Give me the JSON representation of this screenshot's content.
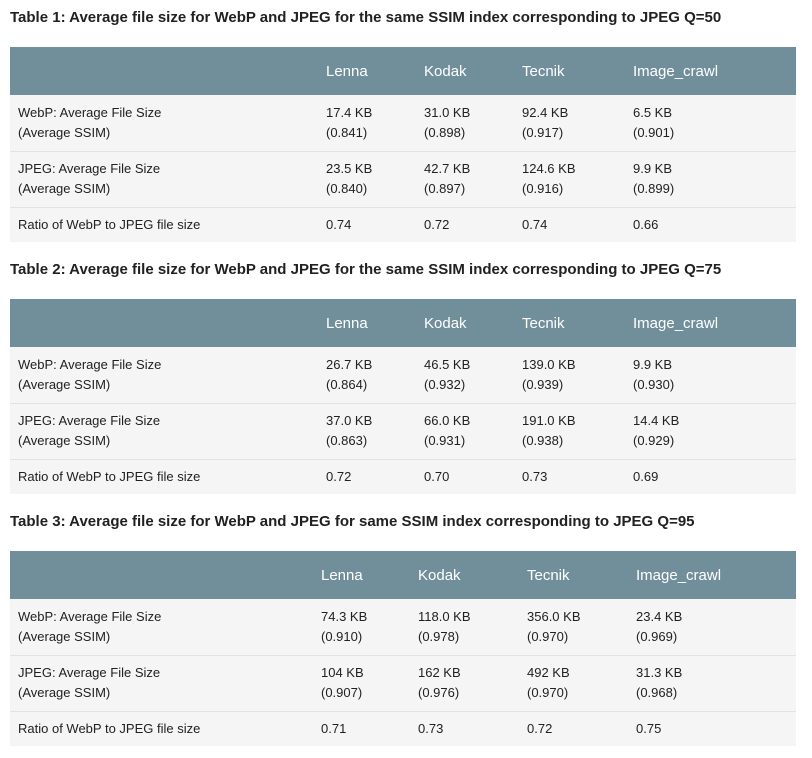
{
  "columns": [
    "Lenna",
    "Kodak",
    "Tecnik",
    "Image_crawl"
  ],
  "tables": [
    {
      "title": "Table 1: Average file size for WebP and JPEG for the same SSIM index corresponding to JPEG Q=50",
      "rows": [
        {
          "label_line1": "WebP: Average File Size",
          "label_line2": "(Average SSIM)",
          "cells": [
            {
              "size": "17.4 KB",
              "ssim": "(0.841)"
            },
            {
              "size": "31.0 KB",
              "ssim": "(0.898)"
            },
            {
              "size": "92.4 KB",
              "ssim": "(0.917)"
            },
            {
              "size": "6.5 KB",
              "ssim": "(0.901)"
            }
          ]
        },
        {
          "label_line1": "JPEG: Average File Size",
          "label_line2": "(Average SSIM)",
          "cells": [
            {
              "size": "23.5 KB",
              "ssim": "(0.840)"
            },
            {
              "size": "42.7 KB",
              "ssim": "(0.897)"
            },
            {
              "size": "124.6 KB",
              "ssim": "(0.916)"
            },
            {
              "size": "9.9 KB",
              "ssim": "(0.899)"
            }
          ]
        }
      ],
      "ratio_label": "Ratio of WebP to JPEG file size",
      "ratios": [
        "0.74",
        "0.72",
        "0.74",
        "0.66"
      ]
    },
    {
      "title": "Table 2: Average file size for WebP and JPEG for the same SSIM index corresponding to JPEG Q=75",
      "rows": [
        {
          "label_line1": "WebP: Average File Size",
          "label_line2": "(Average SSIM)",
          "cells": [
            {
              "size": "26.7 KB",
              "ssim": "(0.864)"
            },
            {
              "size": "46.5 KB",
              "ssim": "(0.932)"
            },
            {
              "size": "139.0 KB",
              "ssim": "(0.939)"
            },
            {
              "size": "9.9 KB",
              "ssim": "(0.930)"
            }
          ]
        },
        {
          "label_line1": "JPEG: Average File Size",
          "label_line2": "(Average SSIM)",
          "cells": [
            {
              "size": "37.0 KB",
              "ssim": "(0.863)"
            },
            {
              "size": "66.0 KB",
              "ssim": "(0.931)"
            },
            {
              "size": "191.0 KB",
              "ssim": "(0.938)"
            },
            {
              "size": "14.4 KB",
              "ssim": "(0.929)"
            }
          ]
        }
      ],
      "ratio_label": "Ratio of WebP to JPEG file size",
      "ratios": [
        "0.72",
        "0.70",
        "0.73",
        "0.69"
      ]
    },
    {
      "title": "Table 3: Average file size for WebP and JPEG for same SSIM index corresponding to JPEG Q=95",
      "rows": [
        {
          "label_line1": "WebP: Average File Size",
          "label_line2": "(Average SSIM)",
          "cells": [
            {
              "size": "74.3 KB",
              "ssim": "(0.910)"
            },
            {
              "size": "118.0 KB",
              "ssim": "(0.978)"
            },
            {
              "size": "356.0 KB",
              "ssim": "(0.970)"
            },
            {
              "size": "23.4 KB",
              "ssim": "(0.969)"
            }
          ]
        },
        {
          "label_line1": "JPEG: Average File Size",
          "label_line2": "(Average SSIM)",
          "cells": [
            {
              "size": "104 KB",
              "ssim": "(0.907)"
            },
            {
              "size": "162 KB",
              "ssim": "(0.976)"
            },
            {
              "size": "492 KB",
              "ssim": "(0.970)"
            },
            {
              "size": "31.3 KB",
              "ssim": "(0.968)"
            }
          ]
        }
      ],
      "ratio_label": "Ratio of WebP to JPEG file size",
      "ratios": [
        "0.71",
        "0.73",
        "0.72",
        "0.75"
      ]
    }
  ],
  "colors": {
    "header_background": "#718f9b",
    "header_text": "#ffffff",
    "row_background": "#f5f5f5",
    "row_divider": "#e2e2e2",
    "body_text": "#212121"
  }
}
